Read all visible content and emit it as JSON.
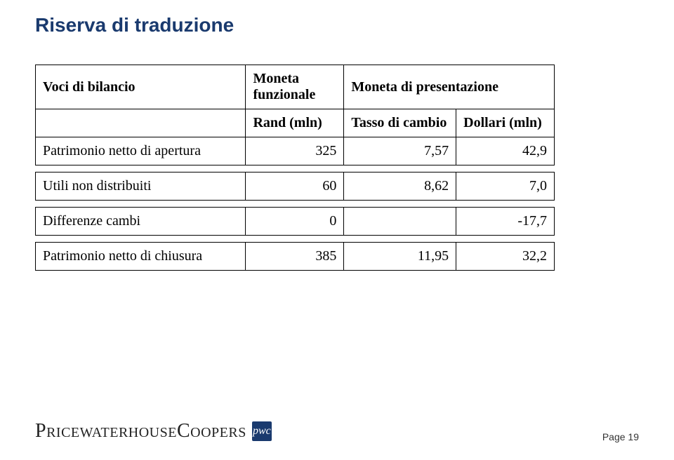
{
  "title": "Riserva di traduzione",
  "table": {
    "header1": {
      "c1": "Voci di bilancio",
      "c2": "Moneta funzionale",
      "c34": "Moneta di presentazione"
    },
    "header2": {
      "c2": "Rand (mln)",
      "c3": "Tasso di cambio",
      "c4": "Dollari (mln)"
    },
    "rows": [
      {
        "label": "Patrimonio netto di apertura",
        "rand": "325",
        "rate": "7,57",
        "usd": "42,9"
      },
      {
        "label": "Utili non distribuiti",
        "rand": "60",
        "rate": "8,62",
        "usd": "7,0"
      },
      {
        "label": "Differenze cambi",
        "rand": "0",
        "rate": "",
        "usd": "-17,7"
      },
      {
        "label": "Patrimonio netto di chiusura",
        "rand": "385",
        "rate": "11,95",
        "usd": "32,2"
      }
    ]
  },
  "logo": {
    "text": "PricewaterhouseCoopers",
    "badge": "pwc"
  },
  "page": "Page 19",
  "colors": {
    "title": "#1a3a6e",
    "badge_bg": "#1a3a6e",
    "border": "#000000",
    "bg": "#ffffff"
  },
  "fontsizes": {
    "title": 28,
    "table": 20,
    "logo": 28,
    "page": 14
  }
}
